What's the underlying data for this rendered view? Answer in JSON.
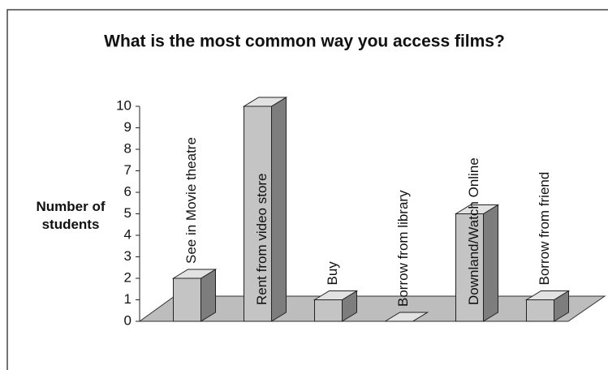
{
  "chart_data": {
    "type": "bar3d",
    "title": "What is the most common way you access films?",
    "y_label": "Number of students",
    "categories": [
      "See in Movie theatre",
      "Rent from video store",
      "Buy",
      "Borrow from library",
      "Downland/Watch Online",
      "Borrow from friend"
    ],
    "values": [
      2,
      10,
      1,
      0,
      5,
      1
    ],
    "color": "#c4c4c4",
    "ylim": [
      0,
      10
    ],
    "yticks": [
      0,
      1,
      2,
      3,
      4,
      5,
      6,
      7,
      8,
      9,
      10
    ]
  }
}
